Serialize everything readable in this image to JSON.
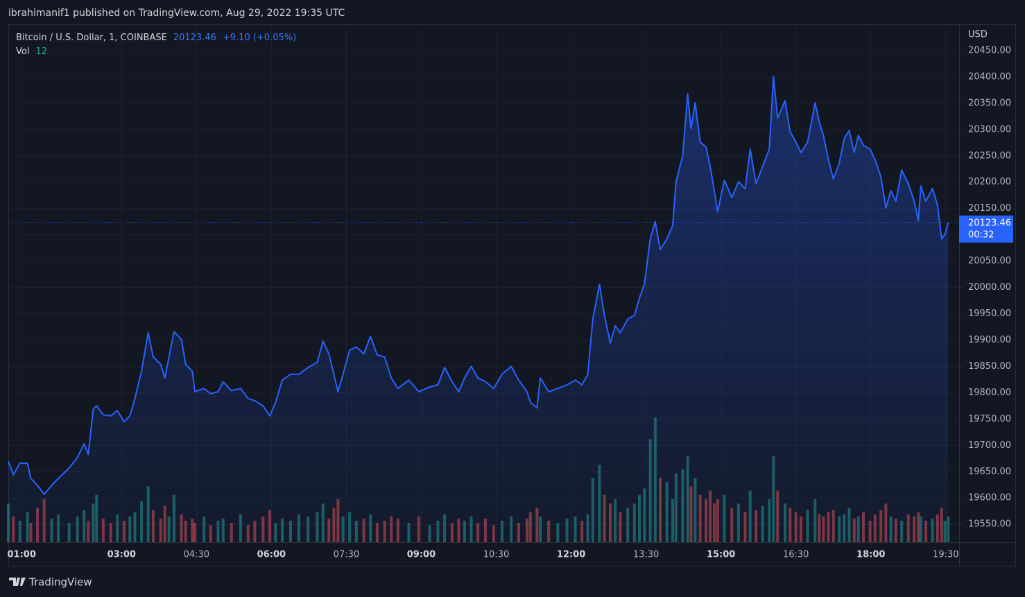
{
  "header": {
    "publisher": "ibrahimanif1 published on TradingView.com, Aug 29, 2022 19:35 UTC"
  },
  "chart_data": {
    "type": "area",
    "title": "Bitcoin / U.S. Dollar, 1, COINBASE",
    "change": "+9.10 (+0.05%)",
    "y_axis_label": "USD",
    "countdown": "00:32",
    "color": "#2962ff",
    "grid": true,
    "x": [
      "00:44",
      "00:50",
      "00:58",
      "01:07",
      "01:11",
      "01:19",
      "01:27",
      "01:36",
      "01:44",
      "01:57",
      "02:07",
      "02:15",
      "02:20",
      "02:26",
      "02:30",
      "02:38",
      "02:47",
      "02:55",
      "03:03",
      "03:10",
      "03:16",
      "03:24",
      "03:32",
      "03:38",
      "03:47",
      "03:52",
      "03:57",
      "04:03",
      "04:12",
      "04:17",
      "04:25",
      "04:28",
      "04:39",
      "04:47",
      "04:56",
      "05:02",
      "05:12",
      "05:23",
      "05:32",
      "05:40",
      "05:50",
      "05:58",
      "06:05",
      "06:13",
      "06:23",
      "06:33",
      "06:44",
      "06:55",
      "07:02",
      "07:09",
      "07:15",
      "07:20",
      "07:26",
      "07:34",
      "07:42",
      "07:51",
      "07:59",
      "08:07",
      "08:16",
      "08:24",
      "08:32",
      "08:45",
      "08:57",
      "09:10",
      "09:20",
      "09:28",
      "09:37",
      "09:45",
      "09:52",
      "10:00",
      "10:08",
      "10:17",
      "10:27",
      "10:37",
      "10:48",
      "10:57",
      "11:07",
      "11:11",
      "11:19",
      "11:23",
      "11:33",
      "11:44",
      "11:55",
      "12:05",
      "12:13",
      "12:20",
      "12:26",
      "12:34",
      "12:40",
      "12:47",
      "12:53",
      "12:59",
      "13:08",
      "13:16",
      "13:22",
      "13:28",
      "13:35",
      "13:41",
      "13:47",
      "13:55",
      "14:02",
      "14:06",
      "14:14",
      "14:20",
      "14:24",
      "14:29",
      "14:35",
      "14:42",
      "14:47",
      "14:52",
      "14:56",
      "15:04",
      "15:13",
      "15:21",
      "15:29",
      "15:35",
      "15:42",
      "15:50",
      "15:58",
      "16:03",
      "16:08",
      "16:17",
      "16:23",
      "16:30",
      "16:36",
      "16:44",
      "16:53",
      "16:58",
      "17:03",
      "17:09",
      "17:15",
      "17:22",
      "17:28",
      "17:34",
      "17:40",
      "17:45",
      "17:51",
      "17:59",
      "18:05",
      "18:12",
      "18:18",
      "18:24",
      "18:30",
      "18:37",
      "18:45",
      "18:52",
      "18:57",
      "19:00",
      "19:06",
      "19:14",
      "19:20",
      "19:25",
      "19:29",
      "19:33"
    ],
    "values": [
      19670,
      19644,
      19666,
      19666,
      19637,
      19624,
      19607,
      19624,
      19637,
      19657,
      19677,
      19703,
      19683,
      19769,
      19775,
      19758,
      19756,
      19766,
      19745,
      19756,
      19789,
      19841,
      19914,
      19868,
      19854,
      19828,
      19868,
      19916,
      19901,
      19854,
      19841,
      19802,
      19808,
      19798,
      19802,
      19821,
      19804,
      19808,
      19789,
      19785,
      19775,
      19756,
      19782,
      19824,
      19835,
      19835,
      19848,
      19858,
      19898,
      19874,
      19835,
      19802,
      19835,
      19881,
      19887,
      19874,
      19907,
      19872,
      19868,
      19828,
      19808,
      19824,
      19802,
      19811,
      19815,
      19848,
      19821,
      19802,
      19828,
      19850,
      19828,
      19821,
      19808,
      19835,
      19850,
      19824,
      19802,
      19782,
      19771,
      19828,
      19802,
      19808,
      19815,
      19824,
      19815,
      19835,
      19940,
      20006,
      19947,
      19894,
      19927,
      19914,
      19940,
      19947,
      19980,
      20006,
      20092,
      20125,
      20072,
      20092,
      20118,
      20201,
      20250,
      20368,
      20302,
      20351,
      20276,
      20267,
      20230,
      20184,
      20144,
      20204,
      20171,
      20201,
      20188,
      20263,
      20197,
      20230,
      20263,
      20401,
      20322,
      20355,
      20296,
      20276,
      20256,
      20276,
      20351,
      20315,
      20289,
      20243,
      20206,
      20236,
      20283,
      20298,
      20256,
      20289,
      20270,
      20263,
      20243,
      20210,
      20151,
      20184,
      20164,
      20223,
      20197,
      20164,
      20127,
      20193,
      20164,
      20188,
      20157,
      20092,
      20101,
      20123.46
    ],
    "volume": {
      "label": "Vol",
      "up_color": "#26a69a",
      "down_color": "#ef5350",
      "values": [
        18,
        12,
        10,
        14,
        9,
        16,
        20,
        11,
        13,
        9,
        12,
        15,
        10,
        18,
        22,
        11,
        9,
        13,
        10,
        12,
        14,
        19,
        26,
        15,
        11,
        17,
        12,
        22,
        13,
        10,
        11,
        9,
        12,
        8,
        10,
        11,
        9,
        13,
        8,
        10,
        12,
        15,
        9,
        11,
        10,
        13,
        12,
        14,
        18,
        11,
        16,
        20,
        12,
        14,
        10,
        11,
        13,
        9,
        10,
        12,
        11,
        9,
        12,
        8,
        10,
        13,
        9,
        11,
        10,
        12,
        9,
        11,
        8,
        10,
        12,
        9,
        11,
        14,
        16,
        12,
        10,
        9,
        11,
        12,
        10,
        13,
        30,
        36,
        22,
        18,
        20,
        14,
        16,
        18,
        22,
        25,
        48,
        58,
        30,
        28,
        20,
        32,
        34,
        40,
        26,
        30,
        22,
        20,
        24,
        18,
        20,
        22,
        16,
        18,
        14,
        24,
        15,
        17,
        20,
        40,
        24,
        18,
        16,
        14,
        12,
        15,
        20,
        13,
        12,
        14,
        15,
        12,
        13,
        16,
        11,
        12,
        14,
        10,
        13,
        15,
        18,
        12,
        11,
        10,
        13,
        12,
        14,
        12,
        10,
        11,
        13,
        16,
        10,
        12
      ]
    },
    "xlim": [
      "00:44",
      "19:46"
    ],
    "xticks": [
      "01:00",
      "03:00",
      "04:30",
      "06:00",
      "07:30",
      "09:00",
      "10:30",
      "12:00",
      "13:30",
      "15:00",
      "16:30",
      "18:00",
      "19:30"
    ],
    "ylim": [
      19516,
      20500
    ],
    "yticks": [
      {
        "value": 19550,
        "label": "19550.00"
      },
      {
        "value": 19600,
        "label": "19600.00"
      },
      {
        "value": 19650,
        "label": "19650.00"
      },
      {
        "value": 19700,
        "label": "19700.00"
      },
      {
        "value": 19750,
        "label": "19750.00"
      },
      {
        "value": 19800,
        "label": "19800.00"
      },
      {
        "value": 19850,
        "label": "19850.00"
      },
      {
        "value": 19900,
        "label": "19900.00"
      },
      {
        "value": 19950,
        "label": "19950.00"
      },
      {
        "value": 20000,
        "label": "20000.00"
      },
      {
        "value": 20050,
        "label": "20050.00"
      },
      {
        "value": 20100,
        "label": "20100.00"
      },
      {
        "value": 20150,
        "label": "20150.00"
      },
      {
        "value": 20200,
        "label": "20200.00"
      },
      {
        "value": 20250,
        "label": "20250.00"
      },
      {
        "value": 20300,
        "label": "20300.00"
      },
      {
        "value": 20350,
        "label": "20350.00"
      },
      {
        "value": 20400,
        "label": "20400.00"
      },
      {
        "value": 20450,
        "label": "20450.00"
      }
    ]
  },
  "footer": {
    "brand": "TradingView"
  }
}
